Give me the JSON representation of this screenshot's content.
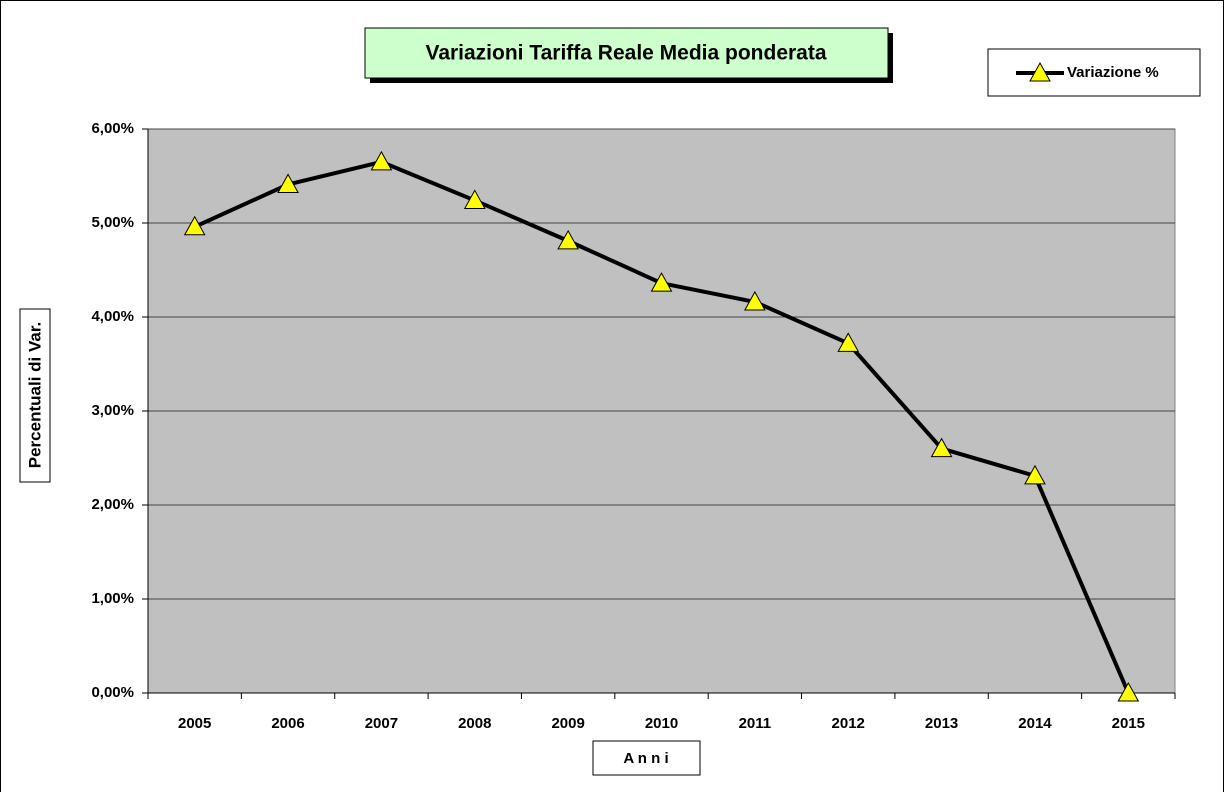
{
  "chart_data": {
    "type": "line",
    "title": "Variazioni Tariffa Reale Media ponderata",
    "x_label": "A n n i",
    "y_label": "Percentuali di Var.",
    "categories": [
      "2005",
      "2006",
      "2007",
      "2008",
      "2009",
      "2010",
      "2011",
      "2012",
      "2013",
      "2014",
      "2015"
    ],
    "series": [
      {
        "name": "Variazione %",
        "color": "#000000",
        "marker_color": "#ffff00",
        "values": [
          4.96,
          5.41,
          5.65,
          5.24,
          4.81,
          4.36,
          4.16,
          3.72,
          2.6,
          2.31,
          0
        ]
      }
    ],
    "ylim": [
      0,
      6
    ],
    "yticks": [
      {
        "value": 0,
        "label": "0,00%"
      },
      {
        "value": 1,
        "label": "1,00%"
      },
      {
        "value": 2,
        "label": "2,00%"
      },
      {
        "value": 3,
        "label": "3,00%"
      },
      {
        "value": 4,
        "label": "4,00%"
      },
      {
        "value": 5,
        "label": "5,00%"
      },
      {
        "value": 6,
        "label": "6,00%"
      }
    ],
    "grid": true,
    "legend": "top-right"
  }
}
